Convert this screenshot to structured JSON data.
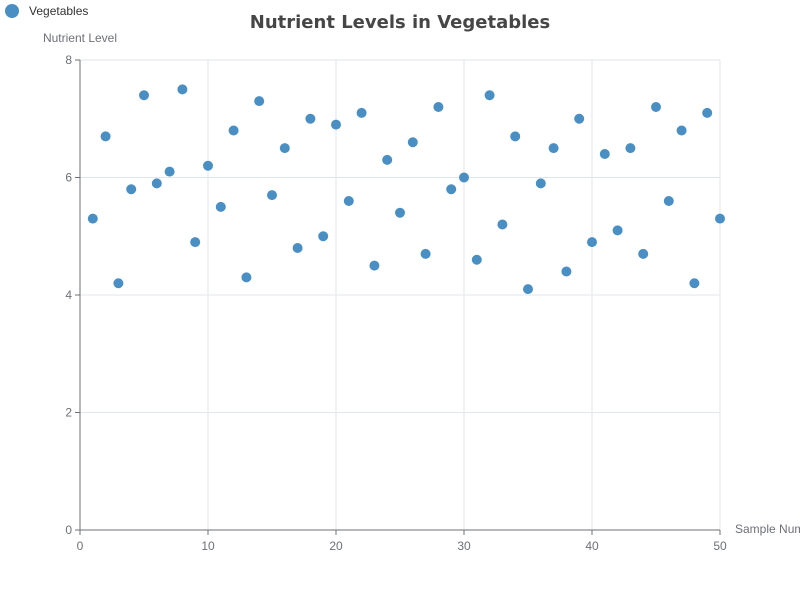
{
  "chart_data": {
    "type": "scatter",
    "title": "Nutrient Levels in Vegetables",
    "xlabel": "Sample Number",
    "ylabel": "Nutrient Level",
    "xlim": [
      0,
      50
    ],
    "ylim": [
      0,
      8
    ],
    "x_ticks": [
      0,
      10,
      20,
      30,
      40,
      50
    ],
    "y_ticks": [
      0,
      2,
      4,
      6,
      8
    ],
    "grid": true,
    "legend_position": "top-left",
    "series": [
      {
        "name": "Vegetables",
        "color": "#4a8fc4",
        "x": [
          1,
          2,
          3,
          4,
          5,
          6,
          7,
          8,
          9,
          10,
          11,
          12,
          13,
          14,
          15,
          16,
          17,
          18,
          19,
          20,
          21,
          22,
          23,
          24,
          25,
          26,
          27,
          28,
          29,
          30,
          31,
          32,
          33,
          34,
          35,
          36,
          37,
          38,
          39,
          40,
          41,
          42,
          43,
          44,
          45,
          46,
          47,
          48,
          49,
          50
        ],
        "y": [
          5.3,
          6.7,
          4.2,
          5.8,
          7.4,
          5.9,
          6.1,
          7.5,
          4.9,
          6.2,
          5.5,
          6.8,
          4.3,
          7.3,
          5.7,
          6.5,
          4.8,
          7.0,
          5.0,
          6.9,
          5.6,
          7.1,
          4.5,
          6.3,
          5.4,
          6.6,
          4.7,
          7.2,
          5.8,
          6.0,
          4.6,
          7.4,
          5.2,
          6.7,
          4.1,
          5.9,
          6.5,
          4.4,
          7.0,
          4.9,
          6.4,
          5.1,
          6.5,
          4.7,
          7.2,
          5.6,
          6.8,
          4.2,
          7.1,
          5.3
        ]
      }
    ]
  }
}
